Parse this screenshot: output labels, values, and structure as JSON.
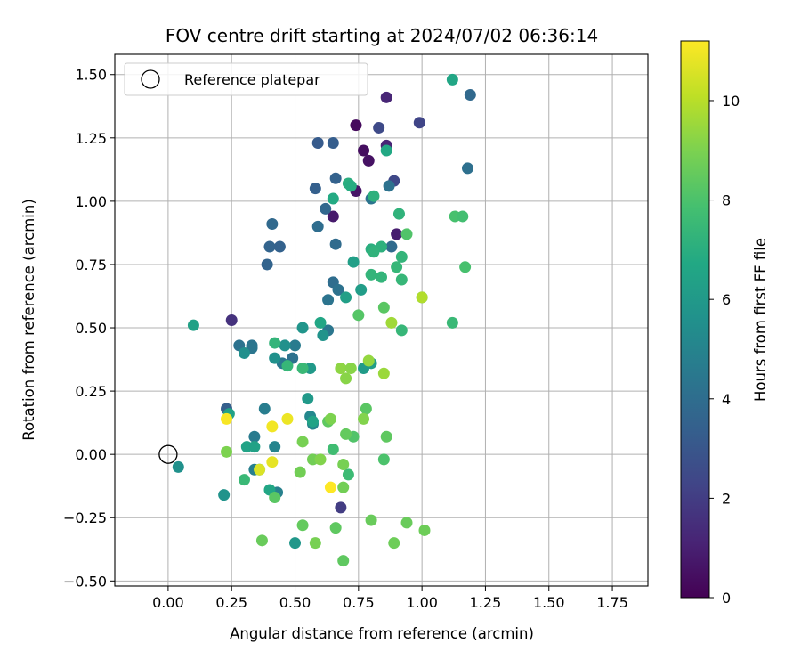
{
  "chart_data": {
    "type": "scatter",
    "title": "FOV centre drift starting at 2024/07/02 06:36:14",
    "xlabel": "Angular distance from reference (arcmin)",
    "ylabel": "Rotation from reference (arcmin)",
    "xlim": [
      -0.21,
      1.89
    ],
    "ylim": [
      -0.52,
      1.58
    ],
    "xticks": [
      0.0,
      0.25,
      0.5,
      0.75,
      1.0,
      1.25,
      1.5,
      1.75
    ],
    "xtick_labels": [
      "0.00",
      "0.25",
      "0.50",
      "0.75",
      "1.00",
      "1.25",
      "1.50",
      "1.75"
    ],
    "yticks": [
      -0.5,
      -0.25,
      0.0,
      0.25,
      0.5,
      0.75,
      1.0,
      1.25,
      1.5
    ],
    "ytick_labels": [
      "−0.50",
      "−0.25",
      "0.00",
      "0.25",
      "0.50",
      "0.75",
      "1.00",
      "1.25",
      "1.50"
    ],
    "grid": true,
    "legend": {
      "placement": "top-left",
      "entries": [
        "Reference platepar"
      ]
    },
    "reference_point": {
      "x": 0.0,
      "y": 0.0
    },
    "colorbar": {
      "label": "Hours from first FF file",
      "min": 0,
      "max": 11.2,
      "ticks": [
        0,
        2,
        4,
        6,
        8,
        10
      ],
      "tick_labels": [
        "0",
        "2",
        "4",
        "6",
        "8",
        "10"
      ],
      "colormap": "viridis"
    },
    "points": [
      {
        "x": 0.74,
        "y": 1.3,
        "c": 0.3
      },
      {
        "x": 0.77,
        "y": 1.2,
        "c": 0.4
      },
      {
        "x": 0.79,
        "y": 1.16,
        "c": 0.5
      },
      {
        "x": 0.74,
        "y": 1.04,
        "c": 0.6
      },
      {
        "x": 0.65,
        "y": 0.94,
        "c": 0.8
      },
      {
        "x": 0.9,
        "y": 0.87,
        "c": 0.9
      },
      {
        "x": 0.86,
        "y": 1.41,
        "c": 1.2
      },
      {
        "x": 0.86,
        "y": 1.22,
        "c": 1.2
      },
      {
        "x": 0.25,
        "y": 0.53,
        "c": 1.6
      },
      {
        "x": 0.68,
        "y": -0.21,
        "c": 2.0
      },
      {
        "x": 0.99,
        "y": 1.31,
        "c": 2.3
      },
      {
        "x": 0.83,
        "y": 1.29,
        "c": 2.5
      },
      {
        "x": 0.89,
        "y": 1.08,
        "c": 2.4
      },
      {
        "x": 0.59,
        "y": 1.23,
        "c": 3.2
      },
      {
        "x": 0.65,
        "y": 1.23,
        "c": 3.3
      },
      {
        "x": 0.66,
        "y": 1.09,
        "c": 3.5
      },
      {
        "x": 0.58,
        "y": 1.05,
        "c": 3.4
      },
      {
        "x": 0.62,
        "y": 0.97,
        "c": 3.7
      },
      {
        "x": 0.41,
        "y": 0.91,
        "c": 3.8
      },
      {
        "x": 0.4,
        "y": 0.82,
        "c": 3.6
      },
      {
        "x": 0.44,
        "y": 0.82,
        "c": 3.5
      },
      {
        "x": 0.39,
        "y": 0.75,
        "c": 3.6
      },
      {
        "x": 0.66,
        "y": 0.83,
        "c": 3.9
      },
      {
        "x": 0.59,
        "y": 0.9,
        "c": 4.0
      },
      {
        "x": 1.19,
        "y": 1.42,
        "c": 3.8
      },
      {
        "x": 1.18,
        "y": 1.13,
        "c": 4.1
      },
      {
        "x": 0.88,
        "y": 0.82,
        "c": 3.9
      },
      {
        "x": 0.87,
        "y": 1.06,
        "c": 4.2
      },
      {
        "x": 0.8,
        "y": 1.01,
        "c": 4.3
      },
      {
        "x": 0.65,
        "y": 0.68,
        "c": 4.0
      },
      {
        "x": 0.67,
        "y": 0.65,
        "c": 4.2
      },
      {
        "x": 0.63,
        "y": 0.61,
        "c": 4.3
      },
      {
        "x": 0.28,
        "y": 0.43,
        "c": 4.2
      },
      {
        "x": 0.33,
        "y": 0.43,
        "c": 4.3
      },
      {
        "x": 0.33,
        "y": 0.42,
        "c": 4.4
      },
      {
        "x": 0.45,
        "y": 0.36,
        "c": 4.5
      },
      {
        "x": 0.49,
        "y": 0.38,
        "c": 4.2
      },
      {
        "x": 0.5,
        "y": 0.43,
        "c": 4.6
      },
      {
        "x": 0.63,
        "y": 0.49,
        "c": 4.4
      },
      {
        "x": 0.23,
        "y": 0.18,
        "c": 3.4
      },
      {
        "x": 0.34,
        "y": 0.07,
        "c": 4.6
      },
      {
        "x": 0.38,
        "y": 0.18,
        "c": 4.7
      },
      {
        "x": 0.34,
        "y": -0.06,
        "c": 4.8
      },
      {
        "x": 0.43,
        "y": -0.15,
        "c": 4.9
      },
      {
        "x": 0.42,
        "y": 0.03,
        "c": 5.0
      },
      {
        "x": 0.57,
        "y": 0.12,
        "c": 5.0
      },
      {
        "x": 0.56,
        "y": 0.15,
        "c": 5.2
      },
      {
        "x": 0.3,
        "y": 0.4,
        "c": 5.5
      },
      {
        "x": 0.42,
        "y": 0.38,
        "c": 5.6
      },
      {
        "x": 0.46,
        "y": 0.43,
        "c": 5.6
      },
      {
        "x": 0.53,
        "y": 0.5,
        "c": 5.8
      },
      {
        "x": 0.61,
        "y": 0.47,
        "c": 5.7
      },
      {
        "x": 0.04,
        "y": -0.05,
        "c": 5.6
      },
      {
        "x": 0.22,
        "y": -0.16,
        "c": 5.7
      },
      {
        "x": 0.5,
        "y": -0.35,
        "c": 5.9
      },
      {
        "x": 0.56,
        "y": 0.34,
        "c": 6.0
      },
      {
        "x": 0.55,
        "y": 0.22,
        "c": 6.0
      },
      {
        "x": 0.8,
        "y": 0.36,
        "c": 6.2
      },
      {
        "x": 0.77,
        "y": 0.34,
        "c": 6.1
      },
      {
        "x": 0.73,
        "y": 0.76,
        "c": 6.3
      },
      {
        "x": 0.76,
        "y": 0.65,
        "c": 6.2
      },
      {
        "x": 0.7,
        "y": 0.62,
        "c": 6.3
      },
      {
        "x": 0.1,
        "y": 0.51,
        "c": 6.4
      },
      {
        "x": 0.24,
        "y": 0.16,
        "c": 6.4
      },
      {
        "x": 0.31,
        "y": 0.03,
        "c": 6.5
      },
      {
        "x": 0.34,
        "y": 0.03,
        "c": 6.4
      },
      {
        "x": 0.36,
        "y": -0.06,
        "c": 6.6
      },
      {
        "x": 0.57,
        "y": 0.13,
        "c": 6.5
      },
      {
        "x": 0.4,
        "y": -0.14,
        "c": 6.6
      },
      {
        "x": 0.6,
        "y": 0.52,
        "c": 6.6
      },
      {
        "x": 0.65,
        "y": 1.01,
        "c": 6.8
      },
      {
        "x": 0.71,
        "y": 1.07,
        "c": 7.0
      },
      {
        "x": 0.72,
        "y": 1.06,
        "c": 6.9
      },
      {
        "x": 0.86,
        "y": 1.2,
        "c": 6.7
      },
      {
        "x": 1.12,
        "y": 1.48,
        "c": 6.6
      },
      {
        "x": 0.8,
        "y": 0.81,
        "c": 7.0
      },
      {
        "x": 0.84,
        "y": 0.82,
        "c": 7.1
      },
      {
        "x": 0.81,
        "y": 0.8,
        "c": 7.2
      },
      {
        "x": 0.8,
        "y": 0.71,
        "c": 7.3
      },
      {
        "x": 0.84,
        "y": 0.7,
        "c": 7.3
      },
      {
        "x": 0.81,
        "y": 1.02,
        "c": 7.1
      },
      {
        "x": 0.91,
        "y": 0.95,
        "c": 7.2
      },
      {
        "x": 0.92,
        "y": 0.78,
        "c": 7.3
      },
      {
        "x": 0.9,
        "y": 0.74,
        "c": 7.4
      },
      {
        "x": 0.92,
        "y": 0.69,
        "c": 7.4
      },
      {
        "x": 0.92,
        "y": 0.49,
        "c": 7.4
      },
      {
        "x": 0.3,
        "y": -0.1,
        "c": 7.5
      },
      {
        "x": 0.42,
        "y": 0.44,
        "c": 7.3
      },
      {
        "x": 0.47,
        "y": 0.35,
        "c": 7.4
      },
      {
        "x": 0.53,
        "y": 0.34,
        "c": 7.5
      },
      {
        "x": 0.65,
        "y": 0.02,
        "c": 7.7
      },
      {
        "x": 0.71,
        "y": -0.08,
        "c": 7.6
      },
      {
        "x": 1.0,
        "y": 0.62,
        "c": 7.4
      },
      {
        "x": 1.12,
        "y": 0.52,
        "c": 7.5
      },
      {
        "x": 1.13,
        "y": 0.94,
        "c": 7.9
      },
      {
        "x": 1.16,
        "y": 0.94,
        "c": 7.8
      },
      {
        "x": 1.17,
        "y": 0.74,
        "c": 7.9
      },
      {
        "x": 0.94,
        "y": 0.87,
        "c": 8.1
      },
      {
        "x": 0.75,
        "y": 0.55,
        "c": 8.2
      },
      {
        "x": 0.85,
        "y": 0.58,
        "c": 8.3
      },
      {
        "x": 0.85,
        "y": -0.02,
        "c": 8.0
      },
      {
        "x": 0.73,
        "y": 0.07,
        "c": 8.1
      },
      {
        "x": 0.78,
        "y": 0.18,
        "c": 8.3
      },
      {
        "x": 0.7,
        "y": 0.08,
        "c": 8.5
      },
      {
        "x": 0.86,
        "y": 0.07,
        "c": 8.4
      },
      {
        "x": 0.63,
        "y": 0.13,
        "c": 8.4
      },
      {
        "x": 0.42,
        "y": -0.17,
        "c": 8.3
      },
      {
        "x": 0.37,
        "y": -0.34,
        "c": 8.6
      },
      {
        "x": 0.53,
        "y": -0.28,
        "c": 8.5
      },
      {
        "x": 0.66,
        "y": -0.29,
        "c": 8.4
      },
      {
        "x": 0.69,
        "y": -0.42,
        "c": 8.4
      },
      {
        "x": 0.8,
        "y": -0.26,
        "c": 8.6
      },
      {
        "x": 0.94,
        "y": -0.27,
        "c": 8.6
      },
      {
        "x": 1.01,
        "y": -0.3,
        "c": 8.7
      },
      {
        "x": 0.89,
        "y": -0.35,
        "c": 8.7
      },
      {
        "x": 0.52,
        "y": -0.07,
        "c": 8.8
      },
      {
        "x": 0.57,
        "y": -0.02,
        "c": 8.8
      },
      {
        "x": 0.58,
        "y": -0.35,
        "c": 8.9
      },
      {
        "x": 0.69,
        "y": -0.04,
        "c": 8.9
      },
      {
        "x": 0.69,
        "y": -0.13,
        "c": 8.8
      },
      {
        "x": 0.53,
        "y": 0.05,
        "c": 8.9
      },
      {
        "x": 0.23,
        "y": 0.01,
        "c": 9.0
      },
      {
        "x": 0.6,
        "y": -0.02,
        "c": 9.1
      },
      {
        "x": 0.64,
        "y": 0.14,
        "c": 9.0
      },
      {
        "x": 0.77,
        "y": 0.14,
        "c": 9.1
      },
      {
        "x": 0.7,
        "y": 0.3,
        "c": 9.2
      },
      {
        "x": 0.68,
        "y": 0.34,
        "c": 9.3
      },
      {
        "x": 0.72,
        "y": 0.34,
        "c": 9.2
      },
      {
        "x": 0.79,
        "y": 0.37,
        "c": 9.4
      },
      {
        "x": 0.85,
        "y": 0.32,
        "c": 9.5
      },
      {
        "x": 0.88,
        "y": 0.52,
        "c": 9.6
      },
      {
        "x": 1.0,
        "y": 0.62,
        "c": 9.9
      },
      {
        "x": 0.36,
        "y": -0.06,
        "c": 10.6
      },
      {
        "x": 0.41,
        "y": -0.03,
        "c": 10.8
      },
      {
        "x": 0.41,
        "y": 0.11,
        "c": 11.0
      },
      {
        "x": 0.47,
        "y": 0.14,
        "c": 10.9
      },
      {
        "x": 0.23,
        "y": 0.14,
        "c": 11.1
      },
      {
        "x": 0.64,
        "y": -0.13,
        "c": 11.2
      }
    ]
  }
}
